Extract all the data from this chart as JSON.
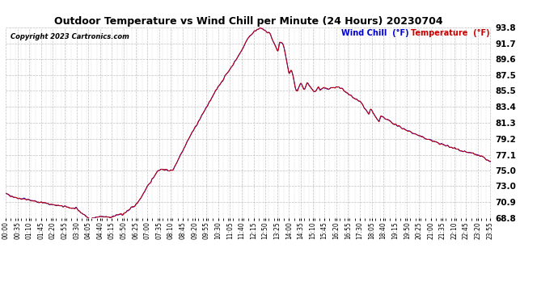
{
  "title": "Outdoor Temperature vs Wind Chill per Minute (24 Hours) 20230704",
  "copyright": "Copyright 2023 Cartronics.com",
  "legend_wind_chill": "Wind Chill  (°F)",
  "legend_temperature": "Temperature  (°F)",
  "wind_chill_color": "#0000cc",
  "temperature_color": "#cc0000",
  "background_color": "#ffffff",
  "grid_color": "#bbbbbb",
  "ylim": [
    68.8,
    93.8
  ],
  "yticks": [
    68.8,
    70.9,
    73.0,
    75.0,
    77.1,
    79.2,
    81.3,
    83.4,
    85.5,
    87.5,
    89.6,
    91.7,
    93.8
  ],
  "total_minutes": 1440,
  "xtick_step": 35,
  "figwidth": 6.9,
  "figheight": 3.75,
  "dpi": 100
}
